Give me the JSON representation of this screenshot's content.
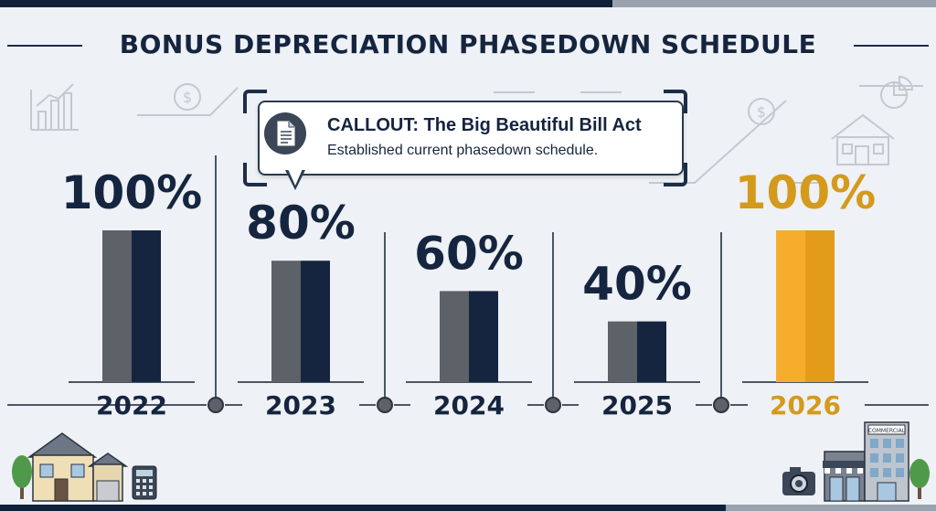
{
  "chart_data": {
    "type": "bar",
    "title": "BONUS DEPRECIATION PHASEDOWN SCHEDULE",
    "categories": [
      "2022",
      "2023",
      "2024",
      "2025",
      "2026"
    ],
    "values": [
      100,
      80,
      60,
      40,
      100
    ],
    "value_labels": [
      "100%",
      "80%",
      "60%",
      "40%",
      "100%"
    ],
    "ylim": [
      0,
      100
    ],
    "xlabel": "",
    "ylabel": "",
    "grid": false,
    "highlight_category": "2026",
    "colors": {
      "bar_left": "#5d6168",
      "bar_right": "#15253f",
      "highlight_left": "#f6ad2b",
      "highlight_right": "#e39b1a",
      "label": "#15253f",
      "highlight_label": "#d49a1c"
    },
    "annotation": {
      "title": "CALLOUT: The Big Beautiful Bill Act",
      "text": "Established current phasedown schedule.",
      "icon": "document-icon"
    }
  },
  "decorations": {
    "top_left": [
      "bar-chart-icon",
      "dollar-coin-icon"
    ],
    "top_right": [
      "dollar-coin-icon",
      "pie-chart-icon",
      "house-outline-icon"
    ],
    "bottom_left": [
      "house-icon",
      "tree-icon",
      "calculator-icon"
    ],
    "bottom_right": [
      "camera-icon",
      "storefront-icon",
      "commercial-building-icon",
      "tree-icon"
    ],
    "building_sign": "COMMERCIAL"
  }
}
